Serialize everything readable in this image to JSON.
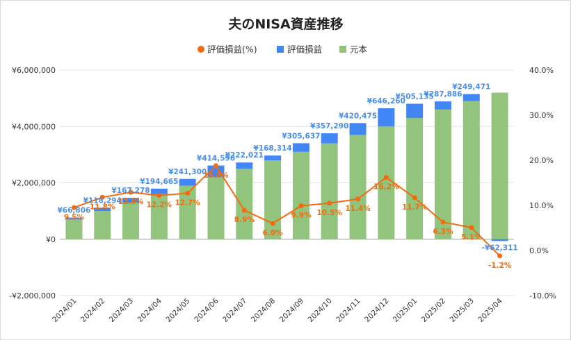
{
  "chart_data": {
    "type": "bar",
    "title": "夫のNISA資産推移",
    "legend": {
      "placement": "top-center",
      "items": [
        {
          "label": "評価損益(%)",
          "color": "#f26b0f",
          "marker": "circle"
        },
        {
          "label": "評価損益",
          "color": "#4285f4",
          "marker": "square"
        },
        {
          "label": "元本",
          "color": "#93c47d",
          "marker": "square"
        }
      ]
    },
    "categories": [
      "2024/01",
      "2024/02",
      "2024/03",
      "2024/04",
      "2024/05",
      "2024/06",
      "2024/07",
      "2024/08",
      "2024/09",
      "2024/10",
      "2024/11",
      "2024/12",
      "2025/01",
      "2025/02",
      "2025/03",
      "2025/04"
    ],
    "series": [
      {
        "name": "元本",
        "type": "stacked-bar",
        "axis": "left",
        "color": "#93c47d",
        "values": [
          700000,
          1000000,
          1300000,
          1600000,
          1900000,
          2200000,
          2500000,
          2800000,
          3100000,
          3400000,
          3700000,
          4000000,
          4300000,
          4600000,
          4900000,
          5200000
        ]
      },
      {
        "name": "評価損益",
        "type": "stacked-bar",
        "axis": "left",
        "color": "#4285f4",
        "values": [
          66806,
          118294,
          167278,
          194665,
          241300,
          414596,
          222021,
          168314,
          305637,
          357290,
          420475,
          646260,
          505135,
          287886,
          249471,
          -62311
        ],
        "labels": [
          "¥66,806",
          "¥118,294",
          "¥167,278",
          "¥194,665",
          "¥241,300",
          "¥414,596",
          "¥222,021",
          "¥168,314",
          "¥305,637",
          "¥357,290",
          "¥420,475",
          "¥646,260",
          "¥505,135",
          "¥287,886",
          "¥249,471",
          "-¥62,311"
        ]
      },
      {
        "name": "評価損益(%)",
        "type": "line",
        "axis": "right",
        "color": "#f26b0f",
        "values": [
          9.5,
          11.8,
          12.9,
          12.2,
          12.7,
          18.8,
          8.9,
          6.0,
          9.9,
          10.5,
          11.4,
          16.2,
          11.7,
          6.3,
          5.1,
          -1.2
        ],
        "labels": [
          "9.5%",
          "11.8%",
          "12.9%",
          "12.2%",
          "12.7%",
          "18.8%",
          "8.9%",
          "6.0%",
          "9.9%",
          "10.5%",
          "11.4%",
          "16.2%",
          "11.7%",
          "6.3%",
          "5.1%",
          "-1.2%"
        ]
      }
    ],
    "y_left": {
      "ylim": [
        -2000000,
        6000000
      ],
      "ticks": [
        -2000000,
        0,
        2000000,
        4000000,
        6000000
      ],
      "tick_labels": [
        "-¥2,000,000",
        "¥0",
        "¥2,000,000",
        "¥4,000,000",
        "¥6,000,000"
      ]
    },
    "y_right": {
      "ylim": [
        -10,
        40
      ],
      "ticks": [
        -10,
        0,
        10,
        20,
        30,
        40
      ],
      "tick_labels": [
        "-10.0%",
        "0.0%",
        "10.0%",
        "20.0%",
        "30.0%",
        "40.0%"
      ]
    },
    "grid": true
  }
}
